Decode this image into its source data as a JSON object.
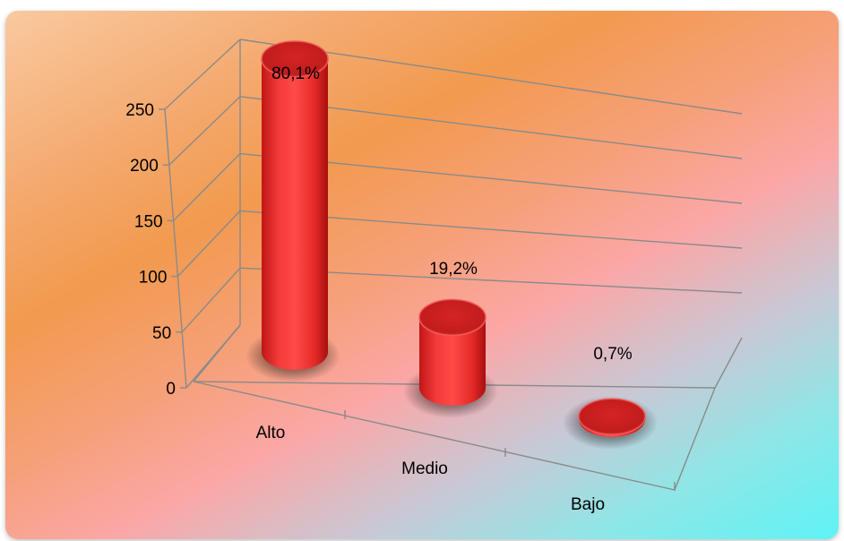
{
  "chart_data": {
    "type": "bar",
    "style": "3d-cylinder",
    "categories": [
      "Alto",
      "Medio",
      "Bajo"
    ],
    "values": [
      233,
      56,
      2
    ],
    "data_labels": [
      "80,1%",
      "19,2%",
      "0,7%"
    ],
    "yticks": [
      "0",
      "50",
      "100",
      "150",
      "200",
      "250"
    ],
    "ylim": [
      0,
      250
    ],
    "grid": true,
    "legend": false,
    "bar_color": "#e8302e",
    "title": "",
    "xlabel": "",
    "ylabel": ""
  }
}
